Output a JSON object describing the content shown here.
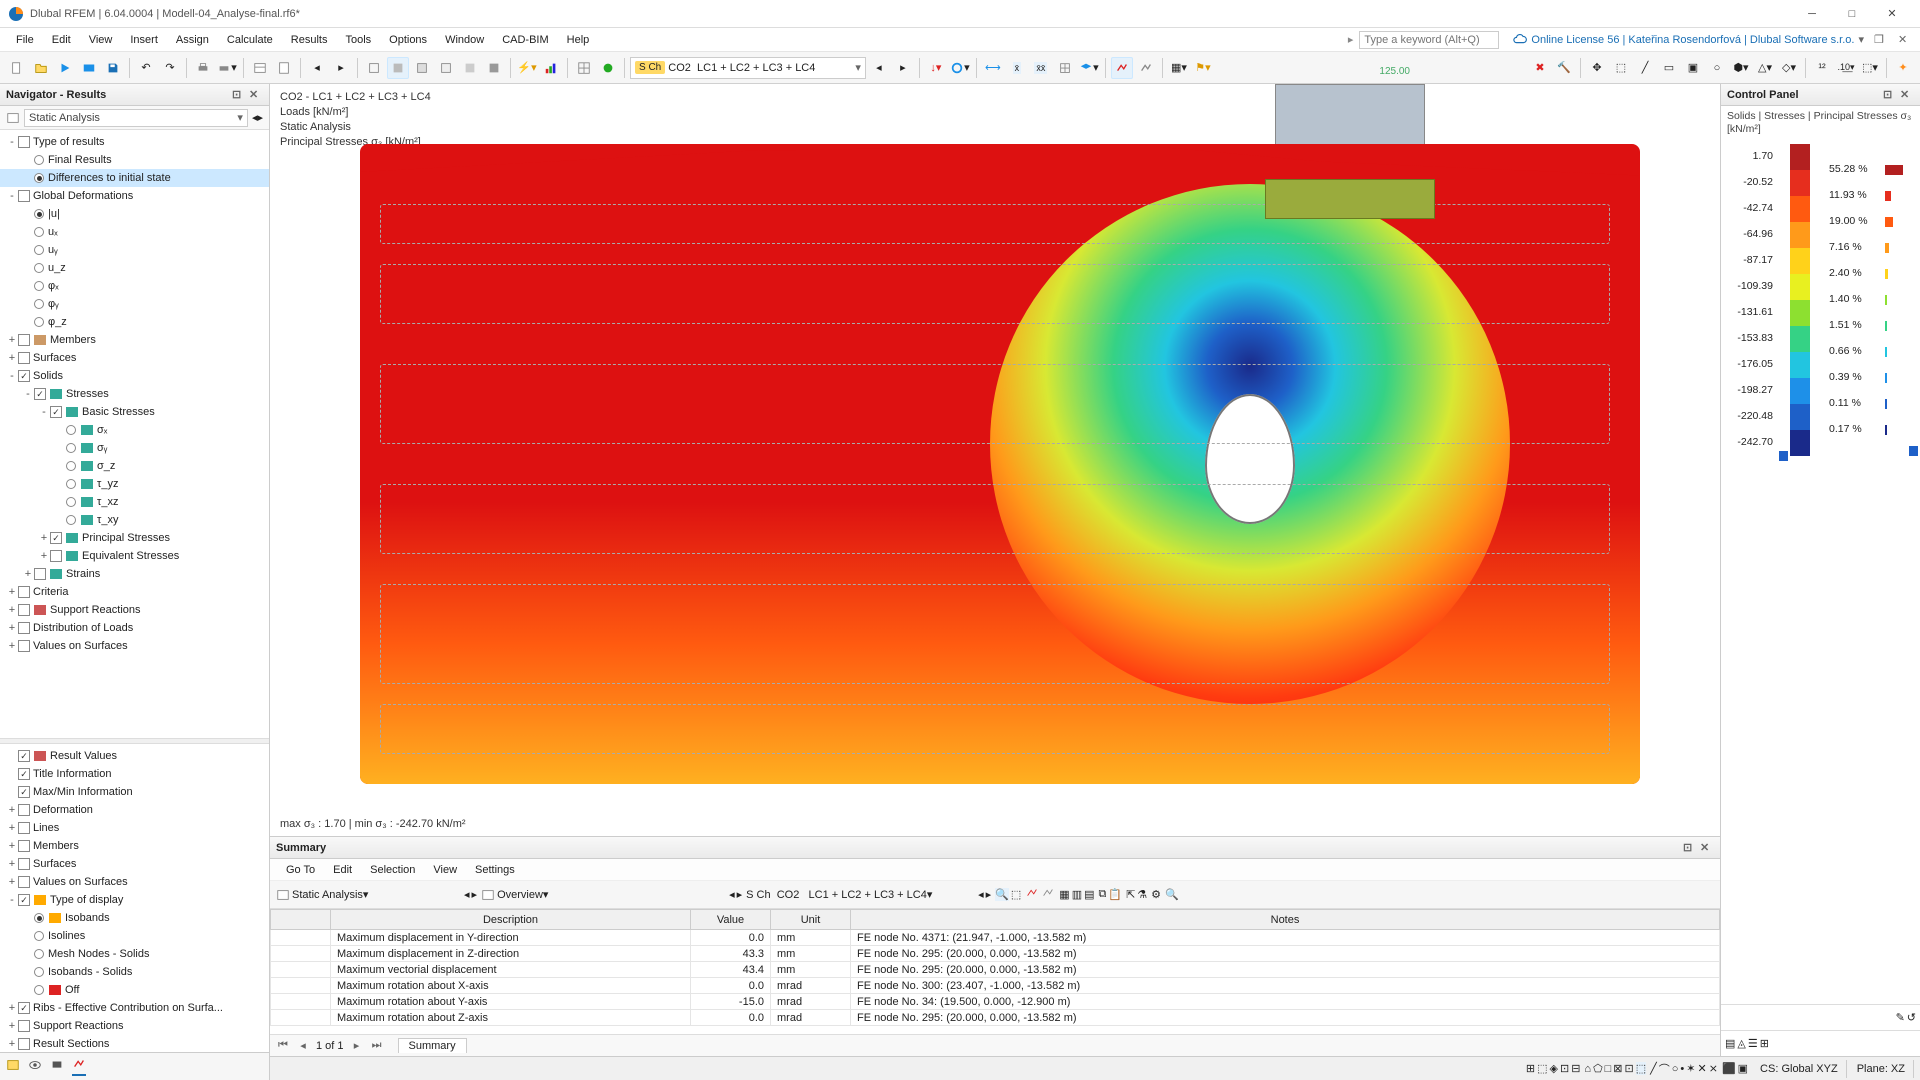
{
  "title": "Dlubal RFEM | 6.04.0004 | Modell-04_Analyse-final.rf6*",
  "menus": [
    "File",
    "Edit",
    "View",
    "Insert",
    "Assign",
    "Calculate",
    "Results",
    "Tools",
    "Options",
    "Window",
    "CAD-BIM",
    "Help"
  ],
  "searchPlaceholder": "Type a keyword (Alt+Q)",
  "license": "Online License 56 | Kateřina Rosendorfová | Dlubal Software s.r.o.",
  "loadcase": {
    "badge": "S Ch",
    "co": "CO2",
    "combo": "LC1 + LC2 + LC3 + LC4"
  },
  "navigator": {
    "title": "Navigator - Results",
    "dropdown": "Static Analysis",
    "items": [
      {
        "d": 0,
        "tw": "-",
        "ck": "",
        "lbl": "Type of results"
      },
      {
        "d": 1,
        "rd": "off",
        "lbl": "Final Results"
      },
      {
        "d": 1,
        "rd": "on",
        "lbl": "Differences to initial state",
        "sel": true
      },
      {
        "d": 0,
        "tw": "-",
        "ck": "",
        "lbl": "Global Deformations"
      },
      {
        "d": 1,
        "rd": "on",
        "lbl": "|u|"
      },
      {
        "d": 1,
        "rd": "off",
        "lbl": "uₓ"
      },
      {
        "d": 1,
        "rd": "off",
        "lbl": "uᵧ"
      },
      {
        "d": 1,
        "rd": "off",
        "lbl": "u_z"
      },
      {
        "d": 1,
        "rd": "off",
        "lbl": "φₓ"
      },
      {
        "d": 1,
        "rd": "off",
        "lbl": "φᵧ"
      },
      {
        "d": 1,
        "rd": "off",
        "lbl": "φ_z"
      },
      {
        "d": 0,
        "tw": "+",
        "ck": "",
        "ic": "#c96",
        "lbl": "Members"
      },
      {
        "d": 0,
        "tw": "+",
        "ck": "",
        "lbl": "Surfaces"
      },
      {
        "d": 0,
        "tw": "-",
        "ck": "✓",
        "lbl": "Solids"
      },
      {
        "d": 1,
        "tw": "-",
        "ck": "✓",
        "ic": "#3a9",
        "lbl": "Stresses"
      },
      {
        "d": 2,
        "tw": "-",
        "ck": "✓",
        "ic": "#3a9",
        "lbl": "Basic Stresses"
      },
      {
        "d": 3,
        "rd": "off",
        "ic": "#3a9",
        "lbl": "σₓ"
      },
      {
        "d": 3,
        "rd": "off",
        "ic": "#3a9",
        "lbl": "σᵧ"
      },
      {
        "d": 3,
        "rd": "off",
        "ic": "#3a9",
        "lbl": "σ_z"
      },
      {
        "d": 3,
        "rd": "off",
        "ic": "#3a9",
        "lbl": "τ_yz"
      },
      {
        "d": 3,
        "rd": "off",
        "ic": "#3a9",
        "lbl": "τ_xz"
      },
      {
        "d": 3,
        "rd": "off",
        "ic": "#3a9",
        "lbl": "τ_xy"
      },
      {
        "d": 2,
        "tw": "+",
        "ck": "✓",
        "ic": "#3a9",
        "lbl": "Principal Stresses"
      },
      {
        "d": 2,
        "tw": "+",
        "ck": "",
        "ic": "#3a9",
        "lbl": "Equivalent Stresses"
      },
      {
        "d": 1,
        "tw": "+",
        "ck": "",
        "ic": "#3a9",
        "lbl": "Strains"
      },
      {
        "d": 0,
        "tw": "+",
        "ck": "",
        "lbl": "Criteria"
      },
      {
        "d": 0,
        "tw": "+",
        "ck": "",
        "ic": "#c55",
        "lbl": "Support Reactions"
      },
      {
        "d": 0,
        "tw": "+",
        "ck": "",
        "lbl": "Distribution of Loads"
      },
      {
        "d": 0,
        "tw": "+",
        "ck": "",
        "lbl": "Values on Surfaces"
      }
    ],
    "items2": [
      {
        "d": 0,
        "ck": "✓",
        "ic": "#c55",
        "lbl": "Result Values"
      },
      {
        "d": 0,
        "ck": "✓",
        "lbl": "Title Information"
      },
      {
        "d": 0,
        "ck": "✓",
        "lbl": "Max/Min Information"
      },
      {
        "d": 0,
        "tw": "+",
        "ck": "",
        "lbl": "Deformation"
      },
      {
        "d": 0,
        "tw": "+",
        "ck": "",
        "lbl": "Lines"
      },
      {
        "d": 0,
        "tw": "+",
        "ck": "",
        "lbl": "Members"
      },
      {
        "d": 0,
        "tw": "+",
        "ck": "",
        "lbl": "Surfaces"
      },
      {
        "d": 0,
        "tw": "+",
        "ck": "",
        "lbl": "Values on Surfaces"
      },
      {
        "d": 0,
        "tw": "-",
        "ck": "✓",
        "ic": "#fa0",
        "lbl": "Type of display"
      },
      {
        "d": 1,
        "rd": "on",
        "ic": "#fa0",
        "lbl": "Isobands"
      },
      {
        "d": 1,
        "rd": "off",
        "lbl": "Isolines"
      },
      {
        "d": 1,
        "rd": "off",
        "lbl": "Mesh Nodes - Solids"
      },
      {
        "d": 1,
        "rd": "off",
        "lbl": "Isobands - Solids"
      },
      {
        "d": 1,
        "rd": "off",
        "ic": "#d22",
        "lbl": "Off"
      },
      {
        "d": 0,
        "tw": "+",
        "ck": "✓",
        "lbl": "Ribs - Effective Contribution on Surfa..."
      },
      {
        "d": 0,
        "tw": "+",
        "ck": "",
        "lbl": "Support Reactions"
      },
      {
        "d": 0,
        "tw": "+",
        "ck": "",
        "lbl": "Result Sections"
      }
    ]
  },
  "viewport": {
    "line1": "CO2 - LC1 + LC2 + LC3 + LC4",
    "line2": "Loads [kN/m²]",
    "line3": "Static Analysis",
    "line4": "Principal Stresses σ₃ [kN/m²]",
    "footer": "max σ₃ : 1.70 | min σ₃ : -242.70 kN/m²",
    "loadval": "125.00"
  },
  "control": {
    "title": "Control Panel",
    "legendTitle": "Solids | Stresses | Principal Stresses σ₃ [kN/m²]",
    "values": [
      "1.70",
      "-20.52",
      "-42.74",
      "-64.96",
      "-87.17",
      "-109.39",
      "-131.61",
      "-153.83",
      "-176.05",
      "-198.27",
      "-220.48",
      "-242.70"
    ],
    "colors": [
      "#b32020",
      "#e62e1e",
      "#ff5a10",
      "#ff9a1a",
      "#ffd21a",
      "#e8f020",
      "#8de030",
      "#35d285",
      "#22c5e0",
      "#1e90e8",
      "#1e60c8",
      "#1a2a8a"
    ],
    "pcts": [
      "55.28 %",
      "11.93 %",
      "19.00 %",
      "7.16 %",
      "2.40 %",
      "1.40 %",
      "1.51 %",
      "0.66 %",
      "0.39 %",
      "0.11 %",
      "0.17 %"
    ],
    "pctcolors": [
      "#b32020",
      "#e62e1e",
      "#ff5a10",
      "#ff9a1a",
      "#ffd21a",
      "#8de030",
      "#35d285",
      "#22c5e0",
      "#1e90e8",
      "#1e60c8",
      "#1a2a8a"
    ]
  },
  "summary": {
    "title": "Summary",
    "menus": [
      "Go To",
      "Edit",
      "Selection",
      "View",
      "Settings"
    ],
    "dd1": "Static Analysis",
    "dd2": "Overview",
    "lc": {
      "badge": "S Ch",
      "co": "CO2",
      "combo": "LC1 + LC2 + LC3 + LC4"
    },
    "cols": [
      "",
      "Description",
      "Value",
      "Unit",
      "Notes"
    ],
    "rows": [
      [
        "",
        "Maximum displacement in Y-direction",
        "0.0",
        "mm",
        "FE node No. 4371: (21.947, -1.000, -13.582 m)"
      ],
      [
        "",
        "Maximum displacement in Z-direction",
        "43.3",
        "mm",
        "FE node No. 295: (20.000, 0.000, -13.582 m)"
      ],
      [
        "",
        "Maximum vectorial displacement",
        "43.4",
        "mm",
        "FE node No. 295: (20.000, 0.000, -13.582 m)"
      ],
      [
        "",
        "Maximum rotation about X-axis",
        "0.0",
        "mrad",
        "FE node No. 300: (23.407, -1.000, -13.582 m)"
      ],
      [
        "",
        "Maximum rotation about Y-axis",
        "-15.0",
        "mrad",
        "FE node No. 34: (19.500, 0.000, -12.900 m)"
      ],
      [
        "",
        "Maximum rotation about Z-axis",
        "0.0",
        "mrad",
        "FE node No. 295: (20.000, 0.000, -13.582 m)"
      ]
    ],
    "pager": "1 of 1",
    "tab": "Summary"
  },
  "statusbar": {
    "cs": "CS: Global XYZ",
    "plane": "Plane: XZ"
  }
}
